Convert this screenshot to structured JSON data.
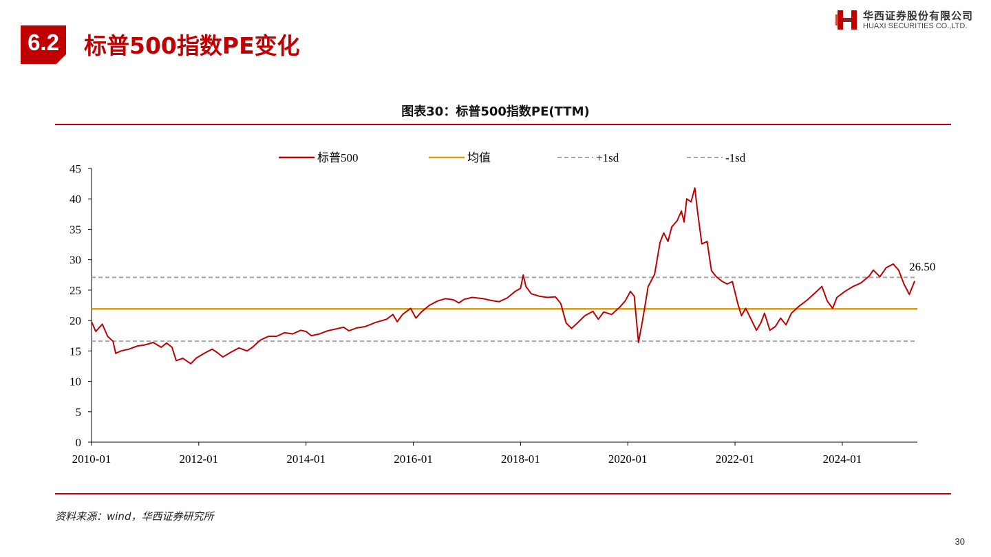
{
  "section": {
    "number": "6.2",
    "title": "标普500指数PE变化"
  },
  "logo": {
    "mark": "H",
    "cn": "华西证券股份有限公司",
    "en": "HUAXI SECURITIES CO.,LTD."
  },
  "chart_title": "图表30：标普500指数PE(TTM)",
  "source": "资料来源：wind，华西证券研究所",
  "page_number": "30",
  "colors": {
    "brand_red": "#c00000",
    "series_red": "#c00000",
    "mean_gold": "#d4a017",
    "band_gray": "#a6a6a6"
  },
  "chart_data": {
    "type": "line",
    "title": "图表30：标普500指数PE(TTM)",
    "xlabel": "",
    "ylabel": "",
    "xlim": [
      2010.0,
      2025.4
    ],
    "ylim": [
      0,
      45
    ],
    "yticks": [
      0,
      5,
      10,
      15,
      20,
      25,
      30,
      35,
      40,
      45
    ],
    "xticks": [
      {
        "x": 2010.0,
        "label": "2010-01"
      },
      {
        "x": 2012.0,
        "label": "2012-01"
      },
      {
        "x": 2014.0,
        "label": "2014-01"
      },
      {
        "x": 2016.0,
        "label": "2016-01"
      },
      {
        "x": 2018.0,
        "label": "2018-01"
      },
      {
        "x": 2020.0,
        "label": "2020-01"
      },
      {
        "x": 2022.0,
        "label": "2022-01"
      },
      {
        "x": 2024.0,
        "label": "2024-01"
      }
    ],
    "legend_position": "top",
    "grid": false,
    "series": [
      {
        "name": "标普500",
        "style": "solid",
        "color": "#c00000",
        "points": [
          [
            2010.0,
            19.8
          ],
          [
            2010.08,
            18.2
          ],
          [
            2010.2,
            19.4
          ],
          [
            2010.3,
            17.4
          ],
          [
            2010.4,
            16.6
          ],
          [
            2010.45,
            14.6
          ],
          [
            2010.55,
            15.0
          ],
          [
            2010.7,
            15.3
          ],
          [
            2010.85,
            15.8
          ],
          [
            2011.0,
            16.0
          ],
          [
            2011.15,
            16.4
          ],
          [
            2011.3,
            15.6
          ],
          [
            2011.4,
            16.3
          ],
          [
            2011.5,
            15.6
          ],
          [
            2011.58,
            13.4
          ],
          [
            2011.7,
            13.8
          ],
          [
            2011.85,
            12.9
          ],
          [
            2011.95,
            13.8
          ],
          [
            2012.1,
            14.6
          ],
          [
            2012.25,
            15.3
          ],
          [
            2012.35,
            14.7
          ],
          [
            2012.45,
            14.0
          ],
          [
            2012.6,
            14.8
          ],
          [
            2012.75,
            15.5
          ],
          [
            2012.9,
            15.0
          ],
          [
            2013.0,
            15.6
          ],
          [
            2013.15,
            16.8
          ],
          [
            2013.3,
            17.4
          ],
          [
            2013.45,
            17.4
          ],
          [
            2013.6,
            18.0
          ],
          [
            2013.75,
            17.8
          ],
          [
            2013.9,
            18.4
          ],
          [
            2014.0,
            18.2
          ],
          [
            2014.1,
            17.5
          ],
          [
            2014.25,
            17.8
          ],
          [
            2014.4,
            18.3
          ],
          [
            2014.55,
            18.6
          ],
          [
            2014.7,
            18.9
          ],
          [
            2014.8,
            18.3
          ],
          [
            2014.95,
            18.8
          ],
          [
            2015.1,
            19.0
          ],
          [
            2015.3,
            19.7
          ],
          [
            2015.5,
            20.2
          ],
          [
            2015.62,
            21.0
          ],
          [
            2015.7,
            19.8
          ],
          [
            2015.8,
            21.0
          ],
          [
            2015.95,
            22.0
          ],
          [
            2016.05,
            20.4
          ],
          [
            2016.15,
            21.4
          ],
          [
            2016.3,
            22.5
          ],
          [
            2016.45,
            23.2
          ],
          [
            2016.6,
            23.6
          ],
          [
            2016.75,
            23.4
          ],
          [
            2016.85,
            22.9
          ],
          [
            2016.95,
            23.5
          ],
          [
            2017.1,
            23.8
          ],
          [
            2017.3,
            23.6
          ],
          [
            2017.45,
            23.3
          ],
          [
            2017.6,
            23.1
          ],
          [
            2017.75,
            23.7
          ],
          [
            2017.9,
            24.8
          ],
          [
            2018.0,
            25.3
          ],
          [
            2018.05,
            27.5
          ],
          [
            2018.1,
            25.6
          ],
          [
            2018.2,
            24.4
          ],
          [
            2018.35,
            24.0
          ],
          [
            2018.5,
            23.8
          ],
          [
            2018.65,
            23.9
          ],
          [
            2018.75,
            22.8
          ],
          [
            2018.85,
            19.6
          ],
          [
            2018.95,
            18.7
          ],
          [
            2019.05,
            19.5
          ],
          [
            2019.2,
            20.8
          ],
          [
            2019.35,
            21.5
          ],
          [
            2019.45,
            20.2
          ],
          [
            2019.55,
            21.4
          ],
          [
            2019.7,
            21.0
          ],
          [
            2019.85,
            22.2
          ],
          [
            2019.95,
            23.2
          ],
          [
            2020.05,
            24.8
          ],
          [
            2020.12,
            24.0
          ],
          [
            2020.2,
            16.4
          ],
          [
            2020.28,
            20.2
          ],
          [
            2020.38,
            25.6
          ],
          [
            2020.5,
            27.6
          ],
          [
            2020.6,
            32.8
          ],
          [
            2020.67,
            34.4
          ],
          [
            2020.75,
            33.0
          ],
          [
            2020.82,
            35.4
          ],
          [
            2020.92,
            36.4
          ],
          [
            2021.0,
            38.0
          ],
          [
            2021.05,
            36.2
          ],
          [
            2021.1,
            40.0
          ],
          [
            2021.18,
            39.5
          ],
          [
            2021.25,
            41.8
          ],
          [
            2021.3,
            38.0
          ],
          [
            2021.38,
            32.6
          ],
          [
            2021.48,
            33.0
          ],
          [
            2021.56,
            28.2
          ],
          [
            2021.65,
            27.2
          ],
          [
            2021.75,
            26.5
          ],
          [
            2021.85,
            26.0
          ],
          [
            2021.95,
            26.4
          ],
          [
            2022.05,
            22.8
          ],
          [
            2022.12,
            20.8
          ],
          [
            2022.2,
            22.0
          ],
          [
            2022.3,
            20.2
          ],
          [
            2022.4,
            18.4
          ],
          [
            2022.48,
            19.6
          ],
          [
            2022.55,
            21.2
          ],
          [
            2022.65,
            18.4
          ],
          [
            2022.75,
            19.0
          ],
          [
            2022.85,
            20.4
          ],
          [
            2022.95,
            19.3
          ],
          [
            2023.05,
            21.2
          ],
          [
            2023.2,
            22.4
          ],
          [
            2023.35,
            23.4
          ],
          [
            2023.5,
            24.6
          ],
          [
            2023.62,
            25.6
          ],
          [
            2023.72,
            23.2
          ],
          [
            2023.82,
            22.0
          ],
          [
            2023.9,
            23.8
          ],
          [
            2024.05,
            24.8
          ],
          [
            2024.2,
            25.6
          ],
          [
            2024.35,
            26.2
          ],
          [
            2024.5,
            27.3
          ],
          [
            2024.58,
            28.3
          ],
          [
            2024.7,
            27.2
          ],
          [
            2024.82,
            28.7
          ],
          [
            2024.95,
            29.3
          ],
          [
            2025.05,
            28.3
          ],
          [
            2025.15,
            26.0
          ],
          [
            2025.25,
            24.3
          ],
          [
            2025.35,
            26.5
          ]
        ]
      },
      {
        "name": "均值",
        "style": "solid",
        "color": "#d4a017",
        "value": 21.9
      },
      {
        "name": "+1sd",
        "style": "dashed",
        "color": "#a6a6a6",
        "value": 27.1
      },
      {
        "name": "-1sd",
        "style": "dashed",
        "color": "#a6a6a6",
        "value": 16.6
      }
    ],
    "annotations": [
      {
        "text": "26.50",
        "x": 2025.35,
        "y": 26.5
      }
    ]
  }
}
